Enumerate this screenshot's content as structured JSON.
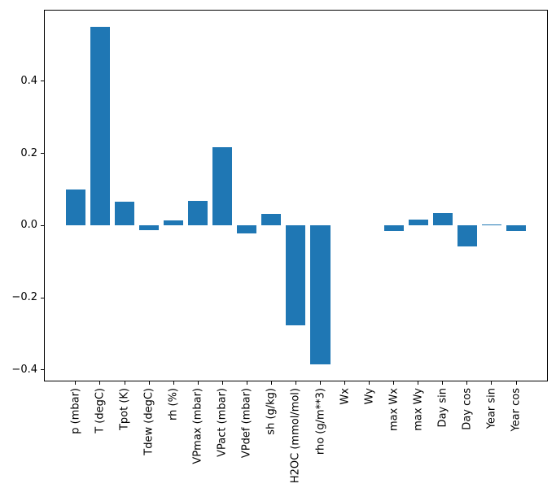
{
  "figure": {
    "background": "#ffffff",
    "axes_color": "#000000"
  },
  "chart_data": {
    "type": "bar",
    "title": "",
    "xlabel": "",
    "ylabel": "",
    "categories": [
      "p (mbar)",
      "T (degC)",
      "Tpot (K)",
      "Tdew (degC)",
      "rh (%)",
      "VPmax (mbar)",
      "VPact (mbar)",
      "VPdef (mbar)",
      "sh (g/kg)",
      "H2OC (mmol/mol)",
      "rho (g/m**3)",
      "Wx",
      "Wy",
      "max Wx",
      "max Wy",
      "Day sin",
      "Day cos",
      "Year sin",
      "Year cos"
    ],
    "values": [
      0.099,
      0.55,
      0.066,
      -0.013,
      0.015,
      0.069,
      0.218,
      -0.022,
      0.033,
      -0.277,
      -0.385,
      0.0,
      0.0,
      -0.015,
      0.017,
      0.035,
      -0.058,
      0.004,
      -0.015
    ],
    "bar_color": "#1f77b4",
    "bar_width_data_units": 0.8,
    "xlim": [
      -1.31,
      19.28
    ],
    "ylim": [
      -0.432,
      0.599
    ],
    "yticks": {
      "values": [
        -0.4,
        -0.2,
        0.0,
        0.2,
        0.4
      ],
      "labels": [
        "−0.4",
        "−0.2",
        "0.0",
        "0.2",
        "0.4"
      ]
    },
    "x_tick_label_rotation_deg": 90,
    "grid": false,
    "legend": false
  }
}
